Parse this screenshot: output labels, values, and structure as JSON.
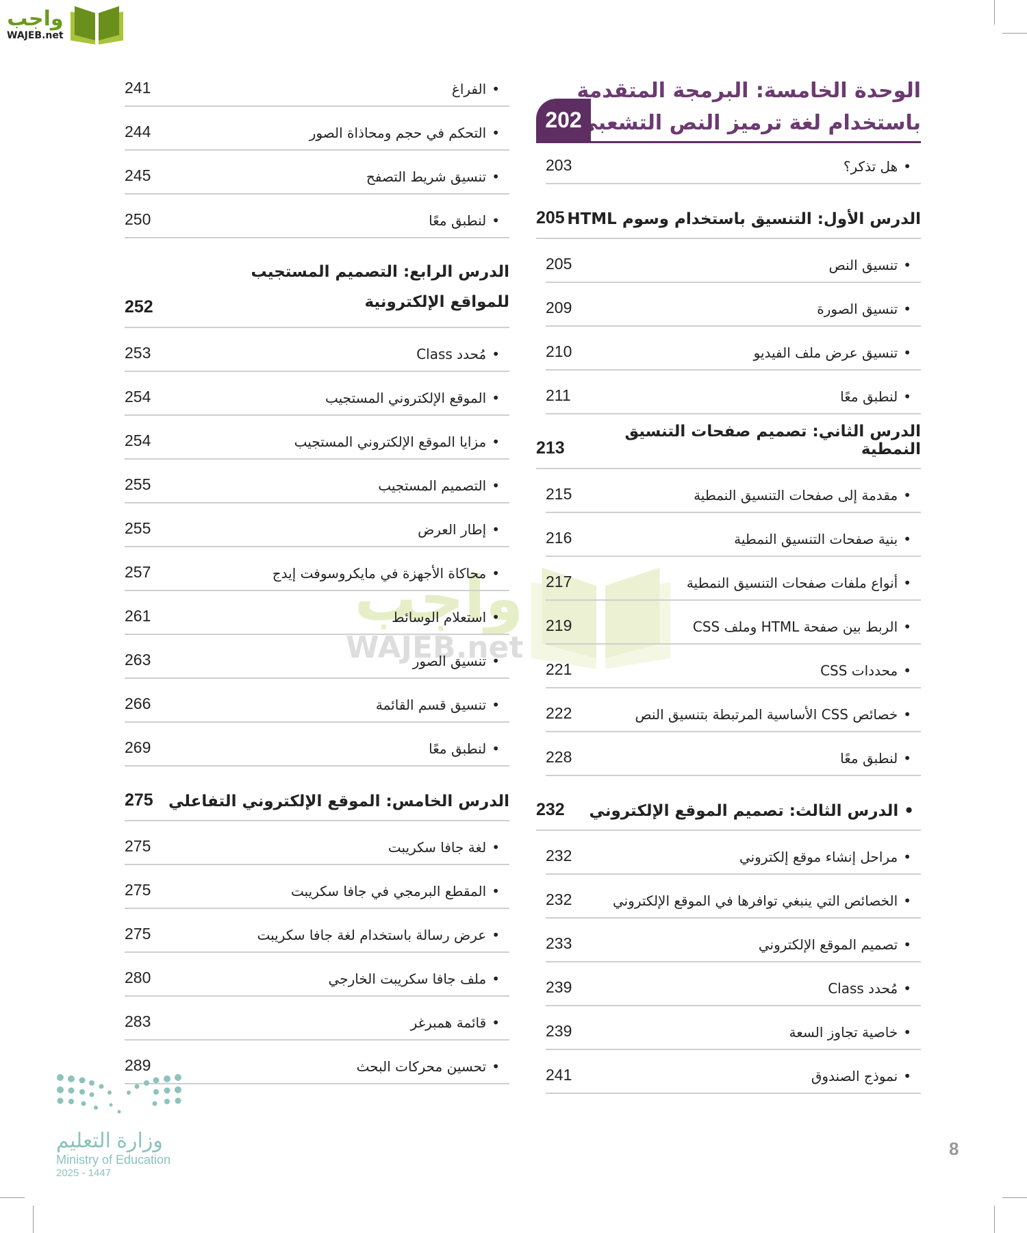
{
  "branding": {
    "site_logo_ar": "واجب",
    "site_logo_en": "WAJEB.net",
    "ministry_ar": "وزارة التعليم",
    "ministry_en": "Ministry of Education",
    "ministry_year": "2025 - 1447"
  },
  "page_number": "8",
  "colors": {
    "accent": "#5e2e63",
    "title": "#6b3a70",
    "rule": "#cfcfcf"
  },
  "right_column": {
    "unit": {
      "title_line1": "الوحدة الخامسة: البرمجة المتقدمة",
      "title_line2": "باستخدام لغة ترميز النص التشعبي",
      "page": "202"
    },
    "intro_items": [
      {
        "label": "هل تذكر؟",
        "page": "203"
      }
    ],
    "lesson1": {
      "title": "الدرس الأول: التنسيق باستخدام وسوم HTML",
      "page": "205",
      "items": [
        {
          "label": "تنسيق النص",
          "page": "205"
        },
        {
          "label": "تنسيق الصورة",
          "page": "209"
        },
        {
          "label": "تنسيق عرض ملف الفيديو",
          "page": "210"
        },
        {
          "label": "لنطبق معًا",
          "page": "211"
        }
      ]
    },
    "lesson2": {
      "title": "الدرس الثاني: تصميم صفحات التنسيق النمطية",
      "page": "213",
      "items": [
        {
          "label": "مقدمة إلى صفحات التنسيق النمطية",
          "page": "215"
        },
        {
          "label": "بنية صفحات التنسيق النمطية",
          "page": "216"
        },
        {
          "label": "أنواع ملفات صفحات التنسيق النمطية",
          "page": "217"
        },
        {
          "label": "الربط بين صفحة HTML وملف CSS",
          "page": "219"
        },
        {
          "label": "محددات CSS",
          "page": "221"
        },
        {
          "label": "خصائص CSS الأساسية المرتبطة بتنسيق النص",
          "page": "222"
        },
        {
          "label": "لنطبق معًا",
          "page": "228"
        }
      ]
    },
    "lesson3": {
      "title": "• الدرس الثالث: تصميم الموقع الإلكتروني",
      "page": "232",
      "items": [
        {
          "label": "مراحل إنشاء موقع إلكتروني",
          "page": "232"
        },
        {
          "label": "الخصائص التي ينبغي توافرها في الموقع الإلكتروني",
          "page": "232"
        },
        {
          "label": "تصميم الموقع الإلكتروني",
          "page": "233"
        },
        {
          "label": "مُحدد Class",
          "page": "239"
        },
        {
          "label": "خاصية تجاوز السعة",
          "page": "239"
        },
        {
          "label": "نموذج الصندوق",
          "page": "241"
        }
      ]
    }
  },
  "left_column": {
    "continued_items": [
      {
        "label": "الفراغ",
        "page": "241"
      },
      {
        "label": "التحكم في حجم ومحاذاة الصور",
        "page": "244"
      },
      {
        "label": "تنسيق شريط التصفح",
        "page": "245"
      },
      {
        "label": "لنطبق معًا",
        "page": "250"
      }
    ],
    "lesson4": {
      "title": "الدرس الرابع: التصميم المستجيب للمواقع الإلكترونية",
      "page": "252",
      "items": [
        {
          "label": "مُحدد Class",
          "page": "253"
        },
        {
          "label": "الموقع الإلكتروني المستجيب",
          "page": "254"
        },
        {
          "label": "مزايا الموقع الإلكتروني المستجيب",
          "page": "254"
        },
        {
          "label": "التصميم المستجيب",
          "page": "255"
        },
        {
          "label": "إطار العرض",
          "page": "255"
        },
        {
          "label": "محاكاة الأجهزة في مايكروسوفت إيدج",
          "page": "257"
        },
        {
          "label": "استعلام الوسائط",
          "page": "261"
        },
        {
          "label": "تنسيق الصور",
          "page": "263"
        },
        {
          "label": "تنسيق قسم القائمة",
          "page": "266"
        },
        {
          "label": "لنطبق معًا",
          "page": "269"
        }
      ]
    },
    "lesson5": {
      "title": "الدرس الخامس: الموقع الإلكتروني التفاعلي",
      "page": "275",
      "items": [
        {
          "label": "لغة جافا سكريبت",
          "page": "275"
        },
        {
          "label": "المقطع البرمجي في جافا سكريبت",
          "page": "275"
        },
        {
          "label": "عرض رسالة باستخدام لغة جافا سكريبت",
          "page": "275"
        },
        {
          "label": "ملف جافا سكريبت الخارجي",
          "page": "280"
        },
        {
          "label": "قائمة همبرغر",
          "page": "283"
        },
        {
          "label": "تحسين محركات البحث",
          "page": "289"
        }
      ]
    }
  }
}
